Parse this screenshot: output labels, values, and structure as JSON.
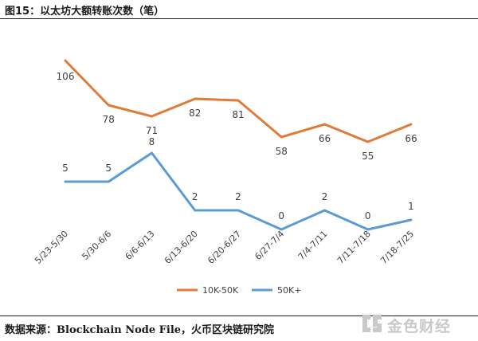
{
  "header": {
    "title": "图15：以太坊大额转账次数（笔）"
  },
  "footer": {
    "source_label": "数据来源：",
    "source_text": "Blockchain Node File，火币区块链研究院"
  },
  "watermark": {
    "text": "金色财经",
    "icon": "golden-finance-logo-icon"
  },
  "chart_data": {
    "type": "line",
    "title": "",
    "xlabel": "",
    "ylabel": "",
    "categories": [
      "5/23-5/30",
      "5/30-6/6",
      "6/6-6/13",
      "6/13-6/20",
      "6/20-6/27",
      "6/27-7/4",
      "7/4-7/11",
      "7/11-7/18",
      "7/18-7/25"
    ],
    "series": [
      {
        "name": "10K-50K",
        "color": "#E07B39",
        "values": [
          106,
          78,
          71,
          82,
          81,
          58,
          66,
          55,
          66
        ]
      },
      {
        "name": "50K+",
        "color": "#5B9BD5",
        "values": [
          5,
          5,
          8,
          2,
          2,
          0,
          2,
          0,
          1
        ]
      }
    ],
    "grid": false,
    "legend": "bottom-center",
    "data_labels": true
  }
}
